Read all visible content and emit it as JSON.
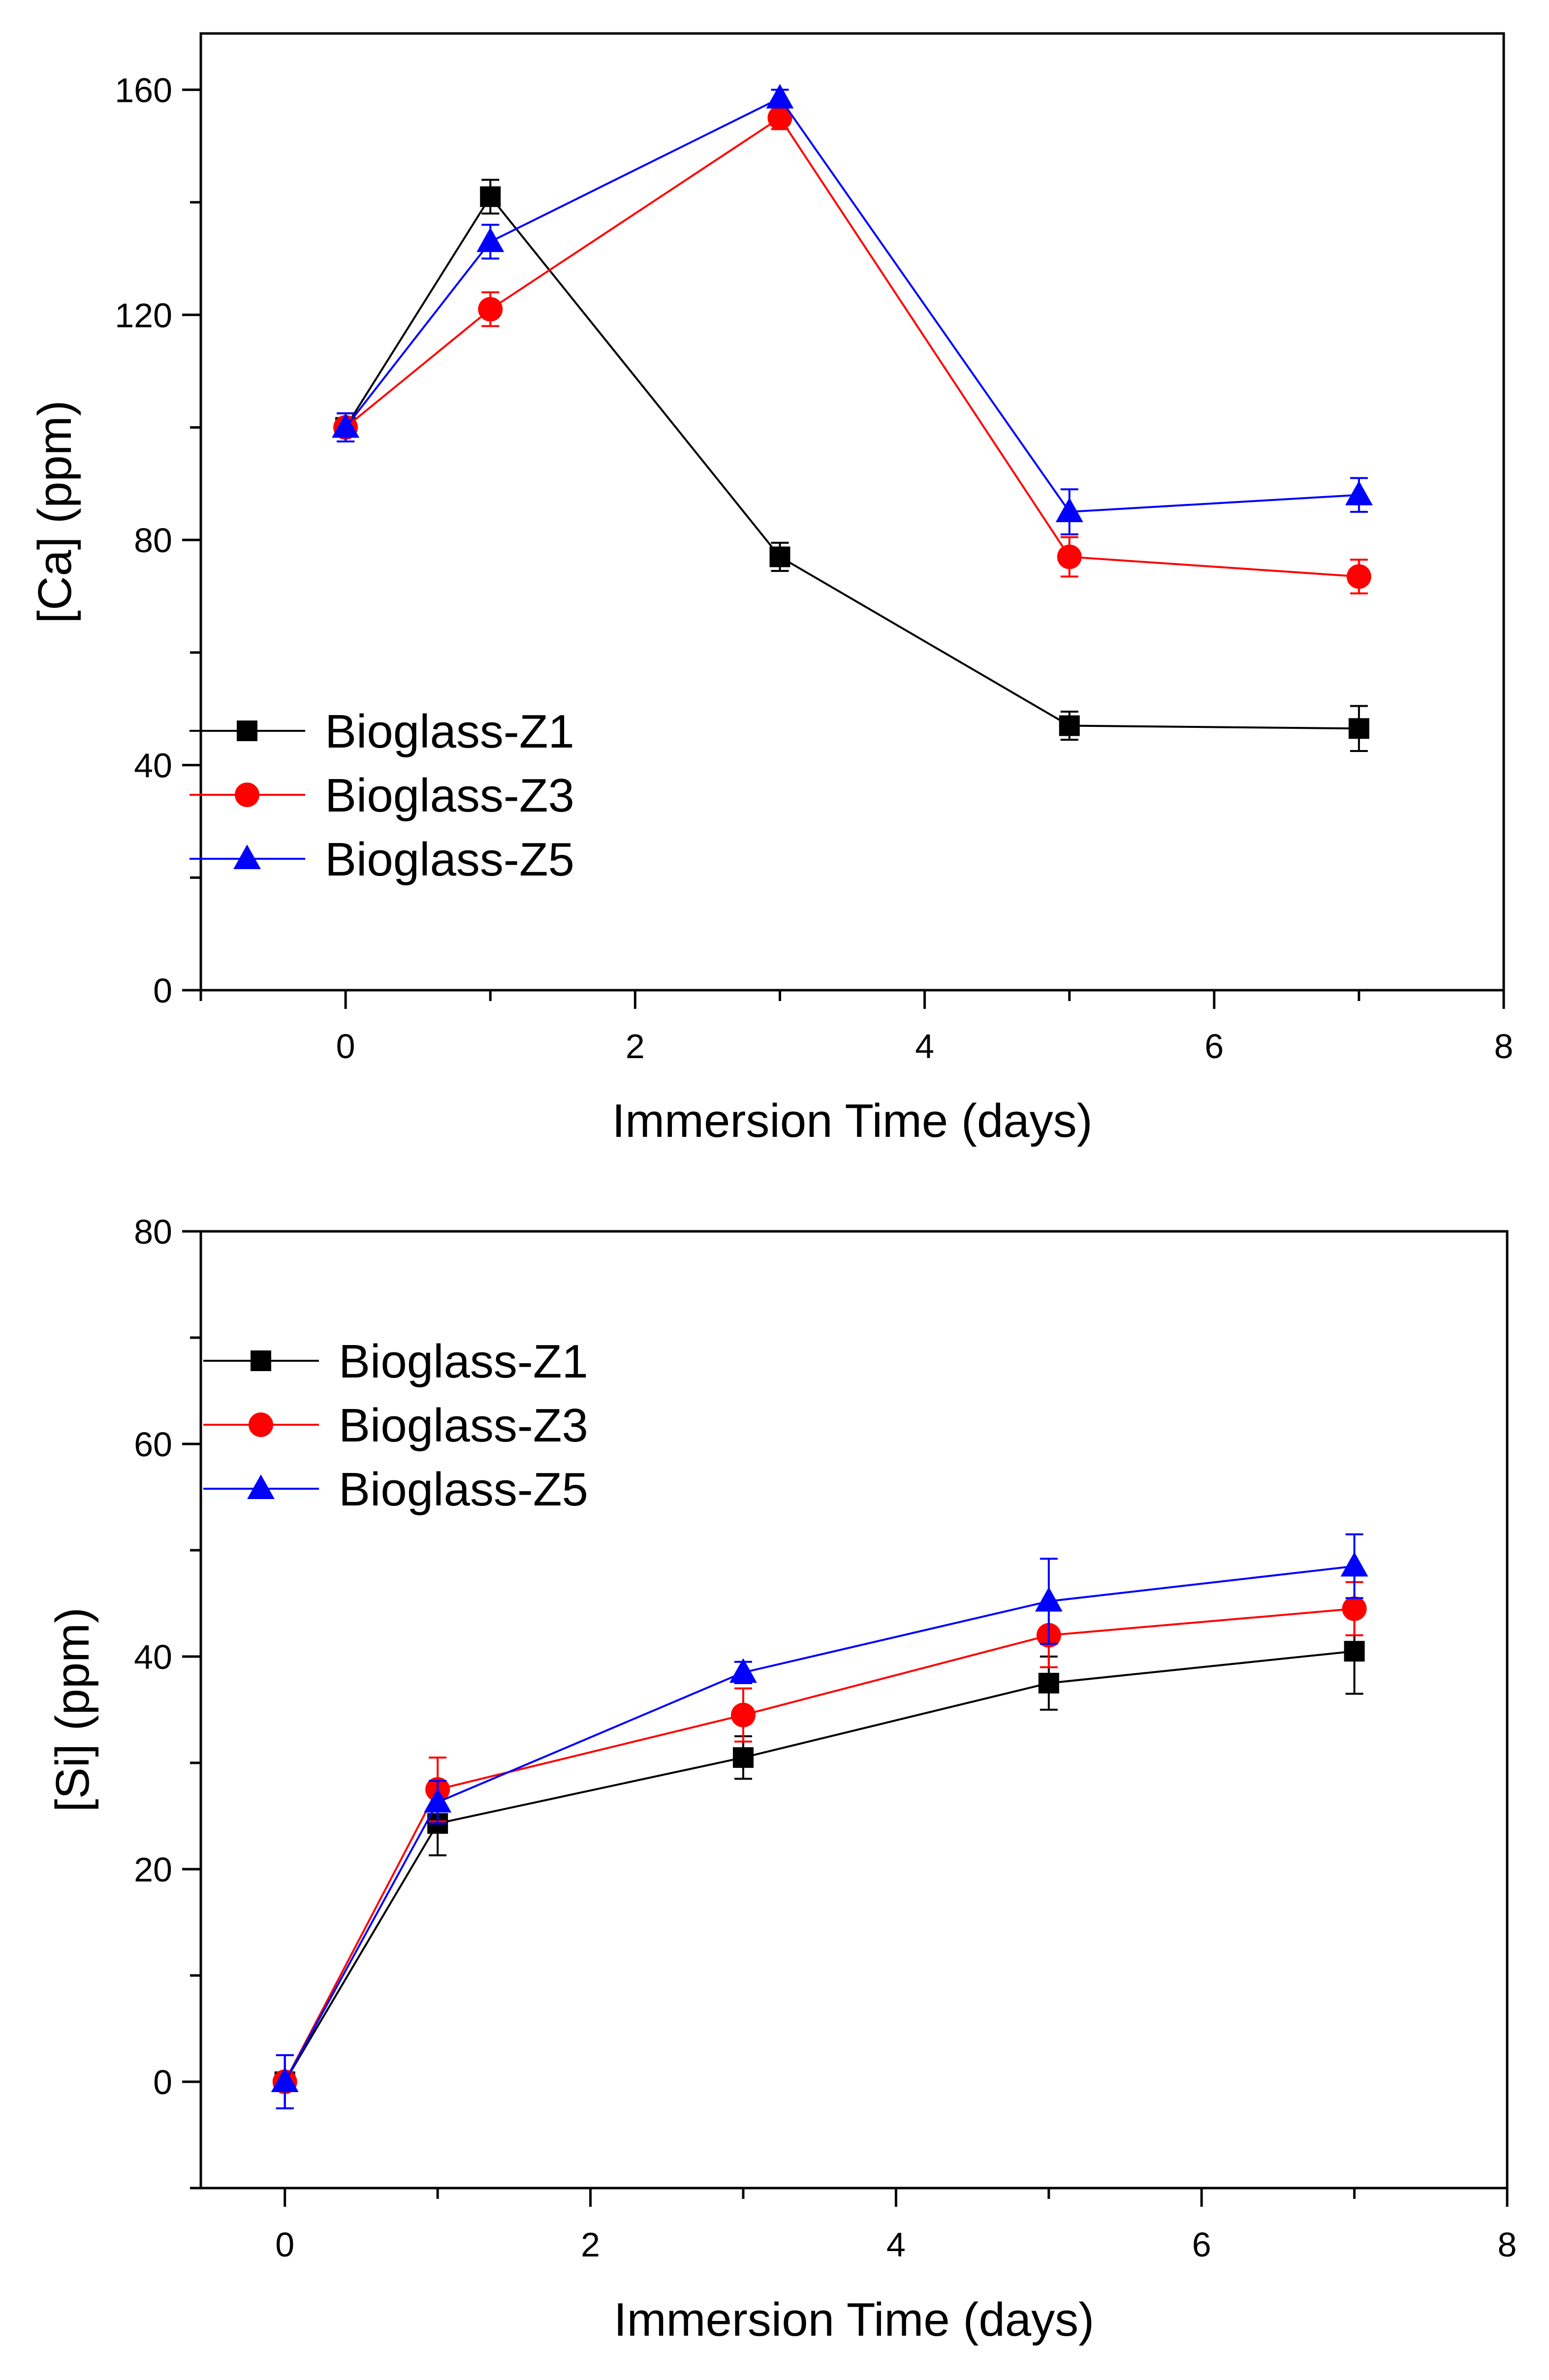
{
  "chart_data": [
    {
      "type": "line",
      "title": "",
      "xlabel": "Immersion Time (days)",
      "ylabel": "[Ca] (ppm)",
      "xlim": [
        -1,
        8
      ],
      "ylim": [
        0,
        170
      ],
      "xticks": [
        0,
        2,
        4,
        6,
        8
      ],
      "yticks": [
        0,
        40,
        80,
        120,
        160
      ],
      "x": [
        0,
        1,
        3,
        5,
        7
      ],
      "legend_position": "lower-left",
      "series": [
        {
          "name": "Bioglass-Z1",
          "color": "#000000",
          "marker": "square",
          "values": [
            100,
            141,
            77,
            47,
            46.5
          ],
          "errors": [
            2.5,
            3,
            2.5,
            2.5,
            4
          ]
        },
        {
          "name": "Bioglass-Z3",
          "color": "#ff0000",
          "marker": "circle",
          "values": [
            100,
            121,
            155,
            77,
            73.5
          ],
          "errors": [
            2.5,
            3,
            2,
            3.5,
            3
          ]
        },
        {
          "name": "Bioglass-Z5",
          "color": "#0000ff",
          "marker": "triangle",
          "values": [
            100,
            133,
            158.5,
            85,
            88
          ],
          "errors": [
            2.5,
            3,
            1.5,
            4,
            3
          ]
        }
      ]
    },
    {
      "type": "line",
      "title": "",
      "xlabel": "Immersion Time (days)",
      "ylabel": "[Si] (ppm)",
      "xlim": [
        -0.55,
        8
      ],
      "ylim": [
        -10,
        80
      ],
      "xticks": [
        0,
        2,
        4,
        6,
        8
      ],
      "yticks": [
        0,
        20,
        40,
        60,
        80
      ],
      "x": [
        0,
        1,
        3,
        5,
        7
      ],
      "legend_position": "upper-left",
      "series": [
        {
          "name": "Bioglass-Z1",
          "color": "#000000",
          "marker": "square",
          "values": [
            0,
            24.3,
            30.5,
            37.5,
            40.5
          ],
          "errors": [
            2.5,
            3,
            2,
            2.5,
            4
          ]
        },
        {
          "name": "Bioglass-Z3",
          "color": "#ff0000",
          "marker": "circle",
          "values": [
            0,
            27.5,
            34.5,
            42,
            44.5
          ],
          "errors": [
            2.5,
            3,
            2.5,
            3,
            2.5
          ]
        },
        {
          "name": "Bioglass-Z5",
          "color": "#0000ff",
          "marker": "triangle",
          "values": [
            0,
            26.3,
            38.5,
            45.2,
            48.5
          ],
          "errors": [
            2.5,
            2,
            1,
            4,
            3
          ]
        }
      ]
    }
  ]
}
